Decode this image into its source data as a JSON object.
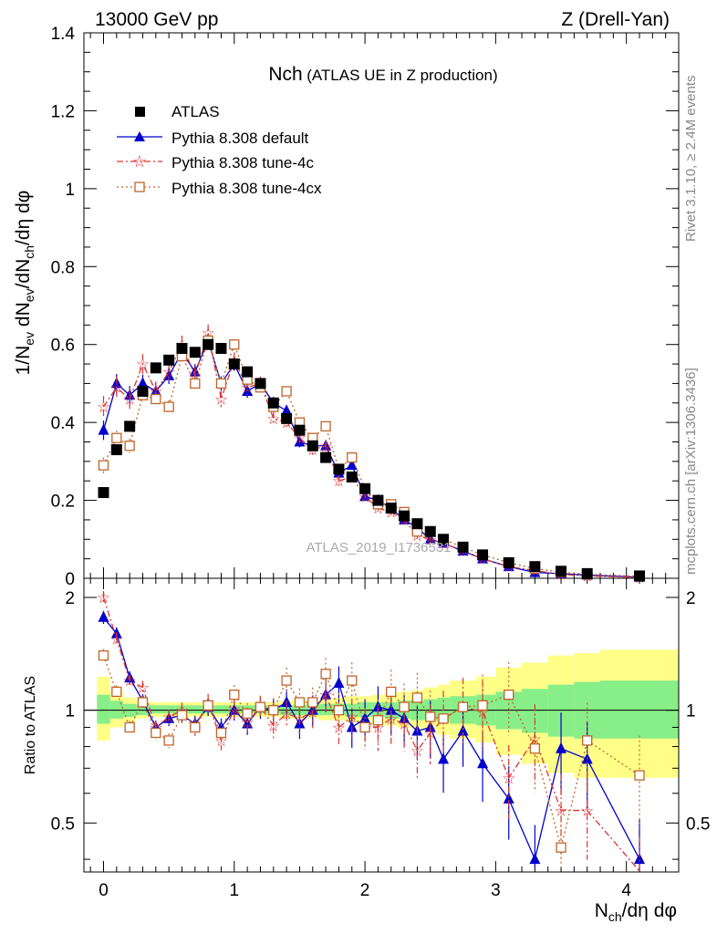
{
  "header": {
    "left": "13000 GeV pp",
    "right": "Z (Drell-Yan)"
  },
  "side_text": {
    "rivet": "Rivet 3.1.10, ≥ 2.4M events",
    "mcplots": "mcplots.cern.ch [arXiv:1306.3436]"
  },
  "watermark": "ATLAS_2019_I1736531",
  "colors": {
    "atlas": "#000000",
    "default": "#0000cc",
    "tune4c": "#dd3333",
    "tune4cx": "#c0642a",
    "band_yellow": "#ffff88",
    "band_green": "#88ee88"
  },
  "chart_data": [
    {
      "type": "scatter",
      "panel": "main",
      "title": "Nch",
      "subtitle": "(ATLAS UE in Z production)",
      "ylabel": "1/N_ev dN_ev/dN_ch/dη dφ",
      "xlabel": "N_ch/dη dφ",
      "xlim": [
        -0.15,
        4.4
      ],
      "ylim": [
        0,
        1.4
      ],
      "xticks": [
        "0",
        "1",
        "2",
        "3",
        "4"
      ],
      "yticks": [
        "0",
        "0.2",
        "0.4",
        "0.6",
        "0.8",
        "1",
        "1.2",
        "1.4"
      ],
      "legend": [
        "ATLAS",
        "Pythia 8.308 default",
        "Pythia 8.308 tune-4c",
        "Pythia 8.308 tune-4cx"
      ],
      "x": [
        0.0,
        0.1,
        0.2,
        0.3,
        0.4,
        0.5,
        0.6,
        0.7,
        0.8,
        0.9,
        1.0,
        1.1,
        1.2,
        1.3,
        1.4,
        1.5,
        1.6,
        1.7,
        1.8,
        1.9,
        2.0,
        2.1,
        2.2,
        2.3,
        2.4,
        2.5,
        2.6,
        2.75,
        2.9,
        3.1,
        3.3,
        3.5,
        3.7,
        4.1
      ],
      "series": [
        {
          "name": "ATLAS",
          "values": [
            0.22,
            0.33,
            0.39,
            0.48,
            0.54,
            0.56,
            0.59,
            0.58,
            0.6,
            0.59,
            0.55,
            0.53,
            0.5,
            0.45,
            0.41,
            0.38,
            0.34,
            0.31,
            0.28,
            0.26,
            0.23,
            0.2,
            0.18,
            0.16,
            0.14,
            0.12,
            0.1,
            0.08,
            0.06,
            0.04,
            0.03,
            0.018,
            0.012,
            0.006
          ]
        },
        {
          "name": "Pythia 8.308 default",
          "values": [
            0.38,
            0.5,
            0.47,
            0.5,
            0.48,
            0.52,
            0.58,
            0.53,
            0.61,
            0.5,
            0.55,
            0.48,
            0.5,
            0.45,
            0.43,
            0.35,
            0.34,
            0.34,
            0.27,
            0.29,
            0.21,
            0.2,
            0.18,
            0.15,
            0.13,
            0.1,
            0.09,
            0.07,
            0.05,
            0.03,
            0.015,
            0.012,
            0.008,
            0.003
          ]
        },
        {
          "name": "Pythia 8.308 tune-4c",
          "values": [
            0.44,
            0.49,
            0.46,
            0.55,
            0.48,
            0.53,
            0.6,
            0.52,
            0.63,
            0.46,
            0.56,
            0.49,
            0.5,
            0.41,
            0.4,
            0.36,
            0.33,
            0.34,
            0.25,
            0.26,
            0.21,
            0.18,
            0.17,
            0.15,
            0.11,
            0.1,
            0.09,
            0.07,
            0.05,
            0.03,
            0.02,
            0.01,
            0.006,
            0.002
          ]
        },
        {
          "name": "Pythia 8.308 tune-4cx",
          "values": [
            0.29,
            0.36,
            0.34,
            0.47,
            0.46,
            0.44,
            0.57,
            0.5,
            0.61,
            0.5,
            0.6,
            0.51,
            0.49,
            0.44,
            0.48,
            0.4,
            0.36,
            0.39,
            0.28,
            0.31,
            0.23,
            0.19,
            0.19,
            0.17,
            0.12,
            0.12,
            0.1,
            0.08,
            0.06,
            0.04,
            0.025,
            0.016,
            0.01,
            0.005
          ]
        }
      ]
    },
    {
      "type": "scatter",
      "panel": "ratio",
      "ylabel": "Ratio to ATLAS",
      "xlim": [
        -0.15,
        4.4
      ],
      "ylim": [
        0.37,
        2.25
      ],
      "ylog": true,
      "yticks": [
        "0.5",
        "1",
        "2"
      ],
      "x": [
        0.0,
        0.1,
        0.2,
        0.3,
        0.4,
        0.5,
        0.6,
        0.7,
        0.8,
        0.9,
        1.0,
        1.1,
        1.2,
        1.3,
        1.4,
        1.5,
        1.6,
        1.7,
        1.8,
        1.9,
        2.0,
        2.1,
        2.2,
        2.3,
        2.4,
        2.5,
        2.6,
        2.75,
        2.9,
        3.1,
        3.3,
        3.5,
        3.7,
        4.1
      ],
      "series": [
        {
          "name": "Pythia 8.308 default",
          "values": [
            1.77,
            1.6,
            1.22,
            1.06,
            0.9,
            0.95,
            0.97,
            0.92,
            1.02,
            0.9,
            1.0,
            0.92,
            1.02,
            1.0,
            1.05,
            0.92,
            1.0,
            1.1,
            1.18,
            0.9,
            0.95,
            1.02,
            1.0,
            0.95,
            0.88,
            0.9,
            0.74,
            0.88,
            0.72,
            0.58,
            0.4,
            0.79,
            0.74,
            0.4
          ]
        },
        {
          "name": "Pythia 8.308 tune-4c",
          "values": [
            2.0,
            1.55,
            1.2,
            1.15,
            0.9,
            0.96,
            1.0,
            0.9,
            1.05,
            0.83,
            1.01,
            0.93,
            1.02,
            0.91,
            0.98,
            0.95,
            0.99,
            1.1,
            0.9,
            0.96,
            0.9,
            0.9,
            0.95,
            0.92,
            0.78,
            0.87,
            0.95,
            1.02,
            0.99,
            0.66,
            0.84,
            0.54,
            0.54,
            0.36
          ]
        },
        {
          "name": "Pythia 8.308 tune-4cx",
          "values": [
            1.4,
            1.12,
            0.9,
            1.05,
            0.87,
            0.83,
            0.97,
            0.9,
            1.03,
            0.87,
            1.1,
            0.98,
            1.02,
            1.0,
            1.2,
            1.05,
            1.05,
            1.25,
            1.0,
            1.2,
            0.9,
            0.94,
            1.12,
            1.02,
            1.08,
            0.96,
            0.95,
            1.02,
            1.03,
            1.1,
            0.79,
            0.43,
            0.83,
            0.67
          ]
        }
      ],
      "band_edges": [
        -0.05,
        0.05,
        0.15,
        0.25,
        0.35,
        0.45,
        0.55,
        0.65,
        0.75,
        0.85,
        0.95,
        1.05,
        1.15,
        1.25,
        1.35,
        1.45,
        1.55,
        1.65,
        1.75,
        1.85,
        1.95,
        2.05,
        2.15,
        2.25,
        2.35,
        2.45,
        2.55,
        2.65,
        2.85,
        3.0,
        3.2,
        3.4,
        3.6,
        3.8,
        4.4
      ],
      "band_yellow": [
        [
          0.83,
          1.23
        ],
        [
          0.9,
          1.12
        ],
        [
          0.93,
          1.08
        ],
        [
          0.95,
          1.06
        ],
        [
          0.96,
          1.05
        ],
        [
          0.96,
          1.05
        ],
        [
          0.96,
          1.05
        ],
        [
          0.96,
          1.05
        ],
        [
          0.96,
          1.05
        ],
        [
          0.96,
          1.05
        ],
        [
          0.96,
          1.05
        ],
        [
          0.96,
          1.05
        ],
        [
          0.96,
          1.05
        ],
        [
          0.96,
          1.05
        ],
        [
          0.95,
          1.06
        ],
        [
          0.95,
          1.06
        ],
        [
          0.95,
          1.06
        ],
        [
          0.94,
          1.07
        ],
        [
          0.94,
          1.08
        ],
        [
          0.93,
          1.09
        ],
        [
          0.93,
          1.09
        ],
        [
          0.92,
          1.1
        ],
        [
          0.91,
          1.11
        ],
        [
          0.9,
          1.12
        ],
        [
          0.89,
          1.13
        ],
        [
          0.88,
          1.15
        ],
        [
          0.86,
          1.17
        ],
        [
          0.84,
          1.2
        ],
        [
          0.82,
          1.23
        ],
        [
          0.76,
          1.3
        ],
        [
          0.72,
          1.34
        ],
        [
          0.68,
          1.4
        ],
        [
          0.66,
          1.42
        ],
        [
          0.66,
          1.45
        ]
      ],
      "band_green": [
        [
          0.92,
          1.1
        ],
        [
          0.95,
          1.06
        ],
        [
          0.96,
          1.04
        ],
        [
          0.97,
          1.03
        ],
        [
          0.98,
          1.03
        ],
        [
          0.98,
          1.03
        ],
        [
          0.98,
          1.03
        ],
        [
          0.98,
          1.03
        ],
        [
          0.98,
          1.03
        ],
        [
          0.98,
          1.03
        ],
        [
          0.98,
          1.03
        ],
        [
          0.98,
          1.03
        ],
        [
          0.98,
          1.03
        ],
        [
          0.98,
          1.03
        ],
        [
          0.97,
          1.03
        ],
        [
          0.97,
          1.03
        ],
        [
          0.97,
          1.04
        ],
        [
          0.97,
          1.04
        ],
        [
          0.97,
          1.04
        ],
        [
          0.96,
          1.04
        ],
        [
          0.96,
          1.05
        ],
        [
          0.96,
          1.05
        ],
        [
          0.95,
          1.05
        ],
        [
          0.95,
          1.06
        ],
        [
          0.94,
          1.06
        ],
        [
          0.94,
          1.07
        ],
        [
          0.93,
          1.08
        ],
        [
          0.92,
          1.09
        ],
        [
          0.91,
          1.1
        ],
        [
          0.89,
          1.12
        ],
        [
          0.87,
          1.14
        ],
        [
          0.85,
          1.17
        ],
        [
          0.84,
          1.19
        ],
        [
          0.84,
          1.2
        ]
      ]
    }
  ]
}
